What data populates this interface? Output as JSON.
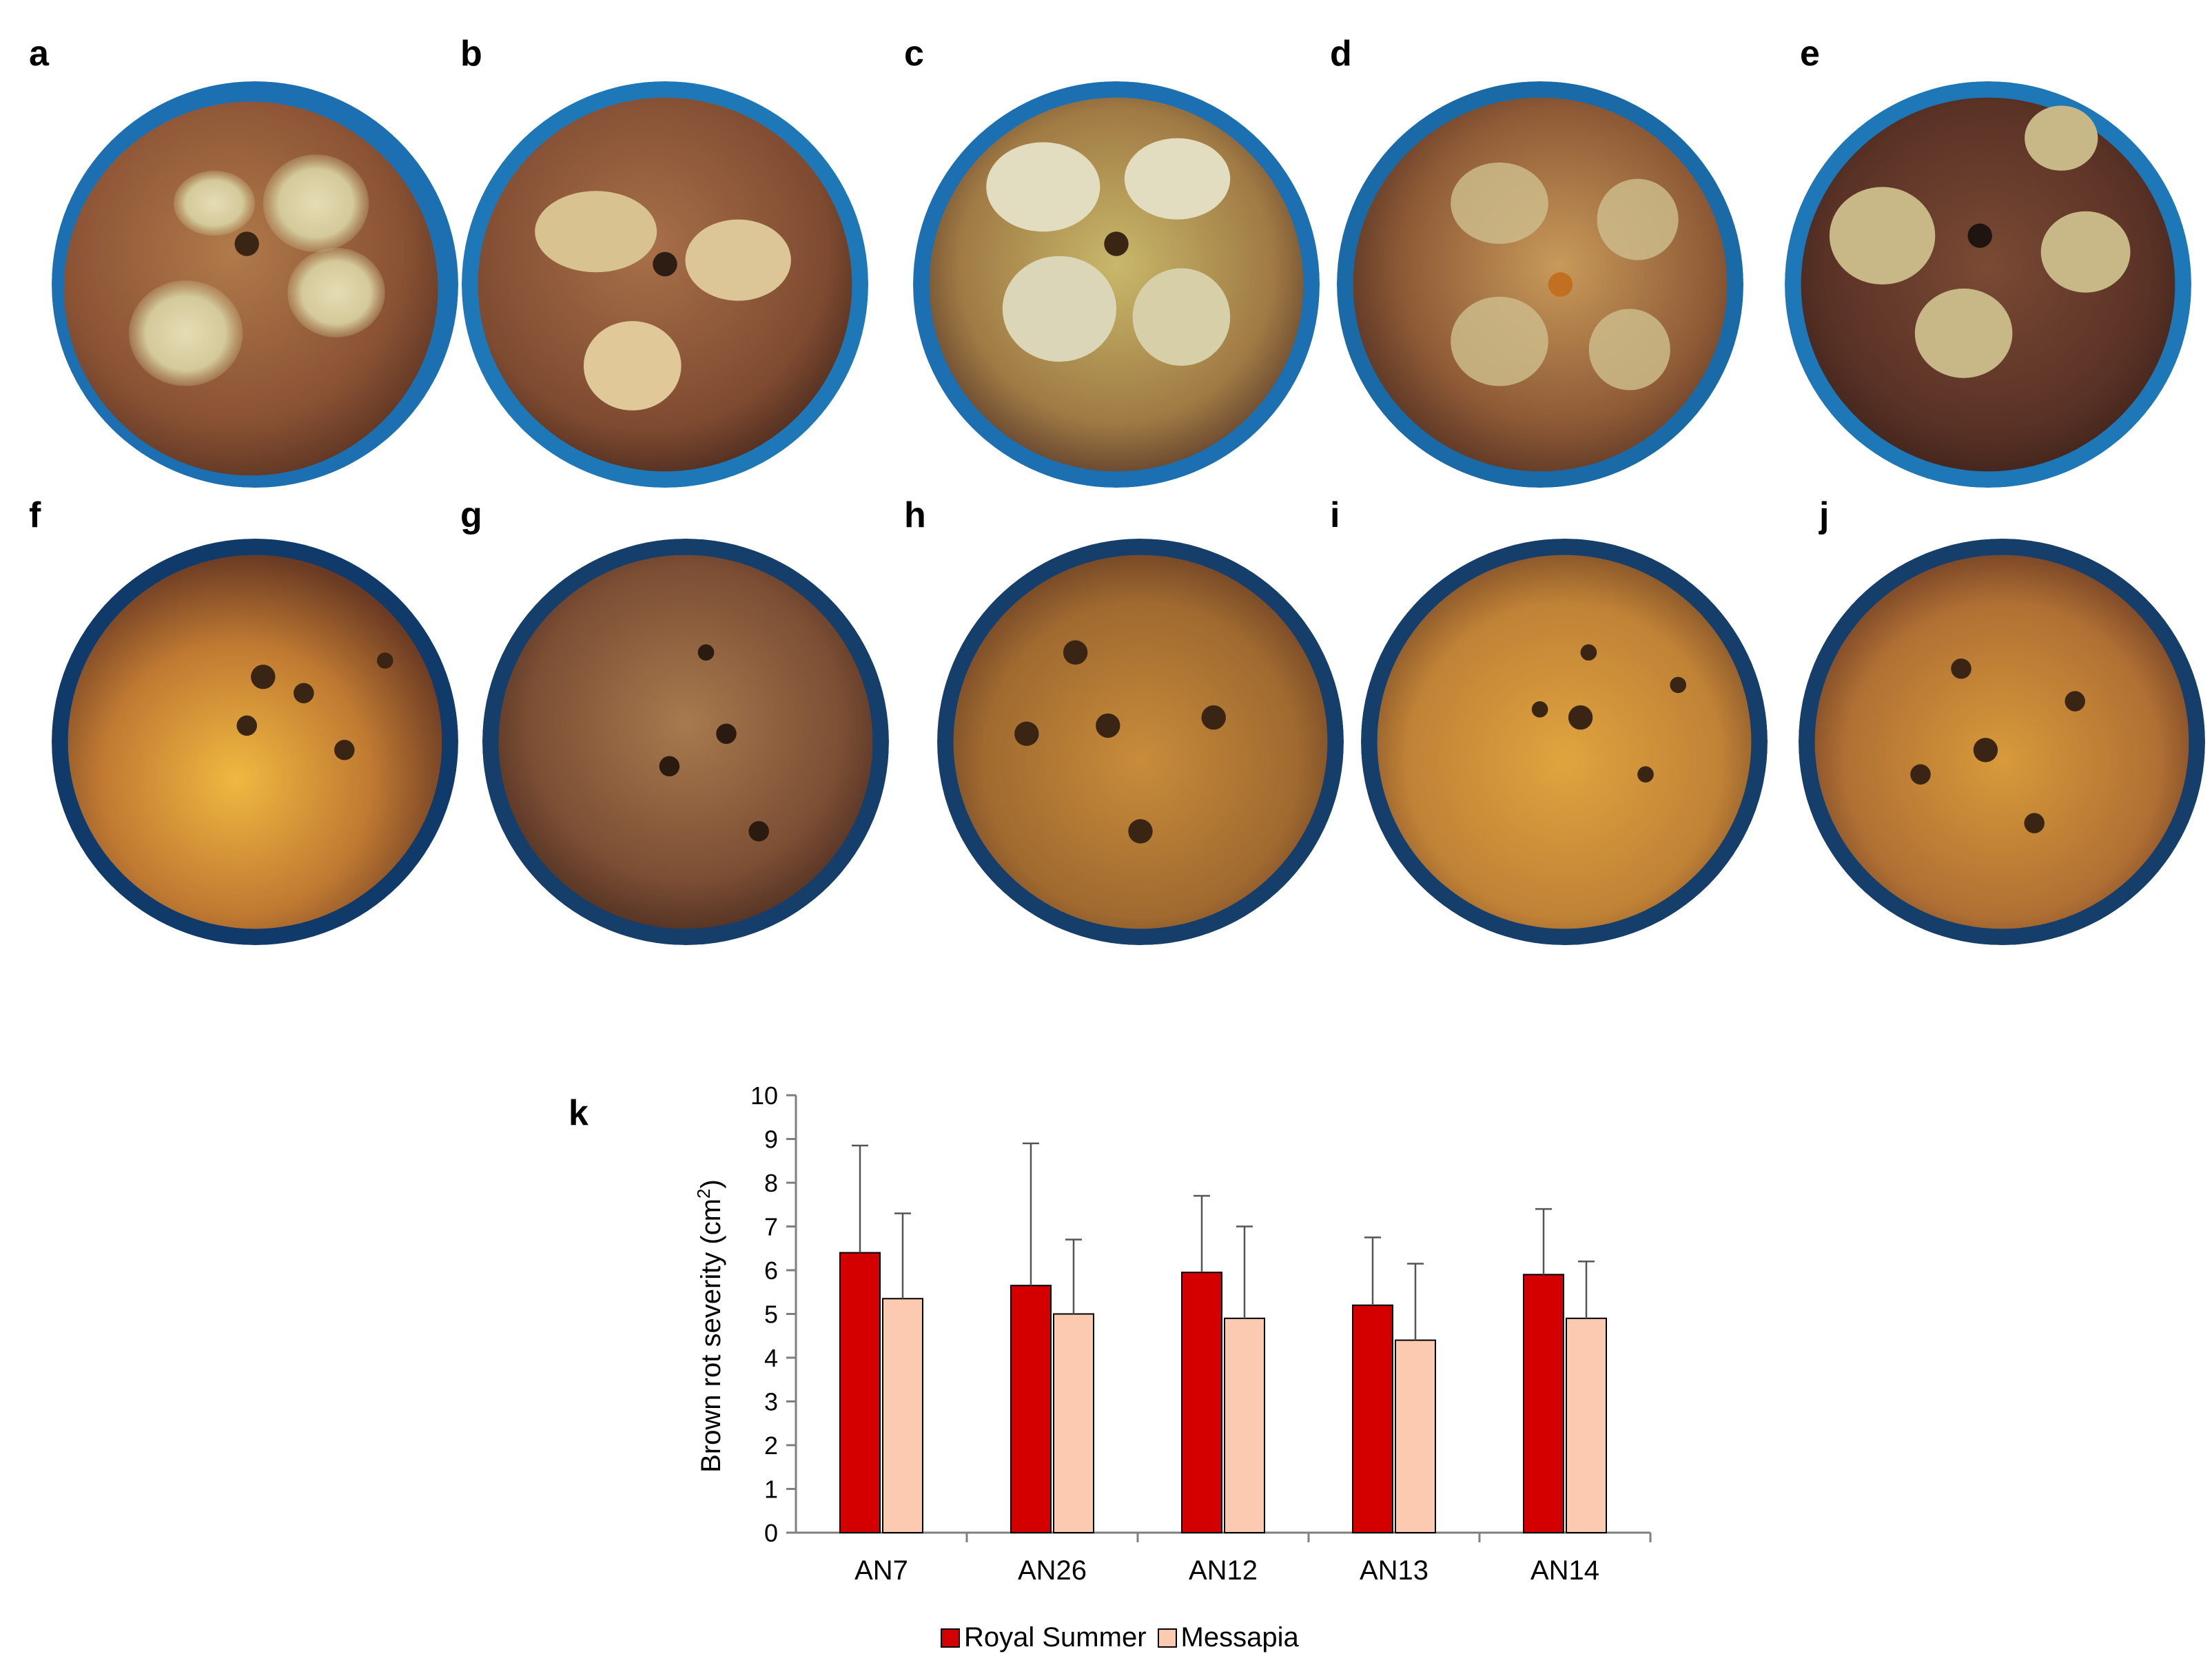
{
  "figure": {
    "panels": [
      {
        "label": "a",
        "type": "photo",
        "subject": "peach-fruit-sporulating-lesions"
      },
      {
        "label": "b",
        "type": "photo",
        "subject": "peach-fruit-sporulating-lesions"
      },
      {
        "label": "c",
        "type": "photo",
        "subject": "peach-fruit-sporulating-lesions"
      },
      {
        "label": "d",
        "type": "photo",
        "subject": "peach-fruit-sporulating-lesions"
      },
      {
        "label": "e",
        "type": "photo",
        "subject": "peach-fruit-sporulating-lesions"
      },
      {
        "label": "f",
        "type": "photo",
        "subject": "peach-fruit-wound-lesions"
      },
      {
        "label": "g",
        "type": "photo",
        "subject": "peach-fruit-wound-lesions"
      },
      {
        "label": "h",
        "type": "photo",
        "subject": "peach-fruit-wound-lesions"
      },
      {
        "label": "i",
        "type": "photo",
        "subject": "peach-fruit-wound-lesions"
      },
      {
        "label": "j",
        "type": "photo",
        "subject": "peach-fruit-wound-lesions"
      }
    ],
    "chart_label": "k"
  },
  "colors": {
    "royal_summer": "#d40000",
    "messapia": "#fbcab0",
    "axis": "#7f7f7f"
  },
  "chart_data": {
    "type": "bar",
    "categories": [
      "AN7",
      "AN26",
      "AN12",
      "AN13",
      "AN14"
    ],
    "series": [
      {
        "name": "Royal Summer",
        "values": [
          6.4,
          5.65,
          5.95,
          5.2,
          5.9
        ],
        "errors": [
          2.45,
          3.25,
          1.75,
          1.55,
          1.5
        ]
      },
      {
        "name": "Messapia",
        "values": [
          5.35,
          5.0,
          4.9,
          4.4,
          4.9
        ],
        "errors": [
          1.95,
          1.7,
          2.1,
          1.75,
          1.3
        ]
      }
    ],
    "ylabel_main": "Brown rot severity (cm",
    "ylabel_sup": "2",
    "ylabel_end": ")",
    "ylim": [
      0,
      10
    ],
    "yticks": [
      "0",
      "1",
      "2",
      "3",
      "4",
      "5",
      "6",
      "7",
      "8",
      "9",
      "10"
    ],
    "grid": false,
    "legend_position": "bottom"
  }
}
